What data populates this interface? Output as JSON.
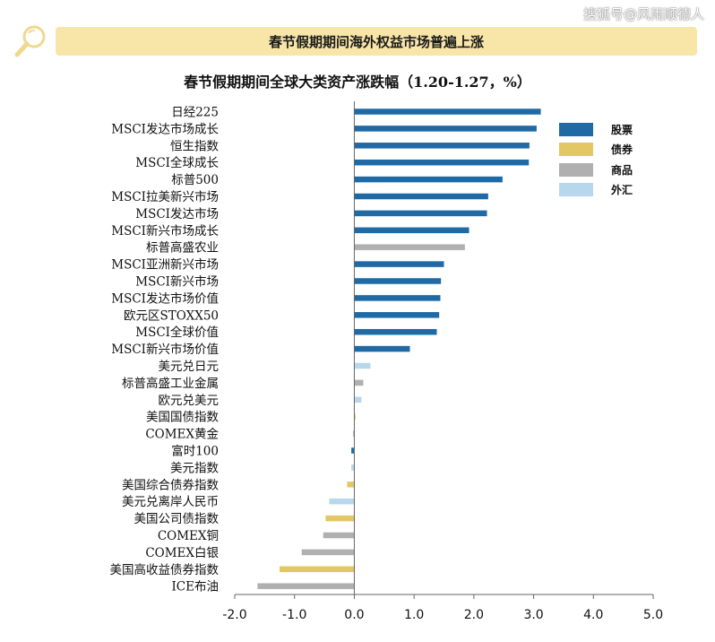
{
  "watermark": "搜狐号@风雨顺德人",
  "banner": {
    "title": "春节假期期间海外权益市场普遍上涨"
  },
  "colors": {
    "equity": "#1f6aa5",
    "bond": "#e3c764",
    "commodity": "#b0b0b0",
    "fx": "#b7d7ec",
    "banner_bg": "#f8e5a8"
  },
  "icons": {
    "banner_icon": "magnifier-icon"
  },
  "chart_data": {
    "type": "bar",
    "orientation": "horizontal",
    "title": "春节假期期间全球大类资产涨跌幅（1.20-1.27，%）",
    "xlim": [
      -2.0,
      5.0
    ],
    "xticks": [
      "-2.0",
      "-1.0",
      "0.0",
      "1.0",
      "2.0",
      "3.0",
      "4.0",
      "5.0"
    ],
    "grid": false,
    "legend_position": "top-right",
    "legend": [
      {
        "key": "equity",
        "label": "股票"
      },
      {
        "key": "bond",
        "label": "债券"
      },
      {
        "key": "commodity",
        "label": "商品"
      },
      {
        "key": "fx",
        "label": "外汇"
      }
    ],
    "bars": [
      {
        "label": "日经225",
        "value": 3.12,
        "cls": "equity"
      },
      {
        "label": "MSCI发达市场成长",
        "value": 3.05,
        "cls": "equity"
      },
      {
        "label": "恒生指数",
        "value": 2.93,
        "cls": "equity"
      },
      {
        "label": "MSCI全球成长",
        "value": 2.92,
        "cls": "equity"
      },
      {
        "label": "标普500",
        "value": 2.48,
        "cls": "equity"
      },
      {
        "label": "MSCI拉美新兴市场",
        "value": 2.24,
        "cls": "equity"
      },
      {
        "label": "MSCI发达市场",
        "value": 2.22,
        "cls": "equity"
      },
      {
        "label": "MSCI新兴市场成长",
        "value": 1.92,
        "cls": "equity"
      },
      {
        "label": "标普高盛农业",
        "value": 1.85,
        "cls": "commodity"
      },
      {
        "label": "MSCI亚洲新兴市场",
        "value": 1.5,
        "cls": "equity"
      },
      {
        "label": "MSCI新兴市场",
        "value": 1.45,
        "cls": "equity"
      },
      {
        "label": "MSCI发达市场价值",
        "value": 1.44,
        "cls": "equity"
      },
      {
        "label": "欧元区STOXX50",
        "value": 1.42,
        "cls": "equity"
      },
      {
        "label": "MSCI全球价值",
        "value": 1.38,
        "cls": "equity"
      },
      {
        "label": "MSCI新兴市场价值",
        "value": 0.93,
        "cls": "equity"
      },
      {
        "label": "美元兑日元",
        "value": 0.27,
        "cls": "fx"
      },
      {
        "label": "标普高盛工业金属",
        "value": 0.15,
        "cls": "commodity"
      },
      {
        "label": "欧元兑美元",
        "value": 0.12,
        "cls": "fx"
      },
      {
        "label": "美国国债指数",
        "value": 0.02,
        "cls": "bond"
      },
      {
        "label": "COMEX黄金",
        "value": -0.02,
        "cls": "commodity"
      },
      {
        "label": "富时100",
        "value": -0.05,
        "cls": "equity"
      },
      {
        "label": "美元指数",
        "value": -0.05,
        "cls": "fx"
      },
      {
        "label": "美国综合债券指数",
        "value": -0.12,
        "cls": "bond"
      },
      {
        "label": "美元兑离岸人民币",
        "value": -0.42,
        "cls": "fx"
      },
      {
        "label": "美国公司债指数",
        "value": -0.48,
        "cls": "bond"
      },
      {
        "label": "COMEX铜",
        "value": -0.52,
        "cls": "commodity"
      },
      {
        "label": "COMEX白银",
        "value": -0.88,
        "cls": "commodity"
      },
      {
        "label": "美国高收益债券指数",
        "value": -1.25,
        "cls": "bond"
      },
      {
        "label": "ICE布油",
        "value": -1.62,
        "cls": "commodity"
      }
    ]
  }
}
